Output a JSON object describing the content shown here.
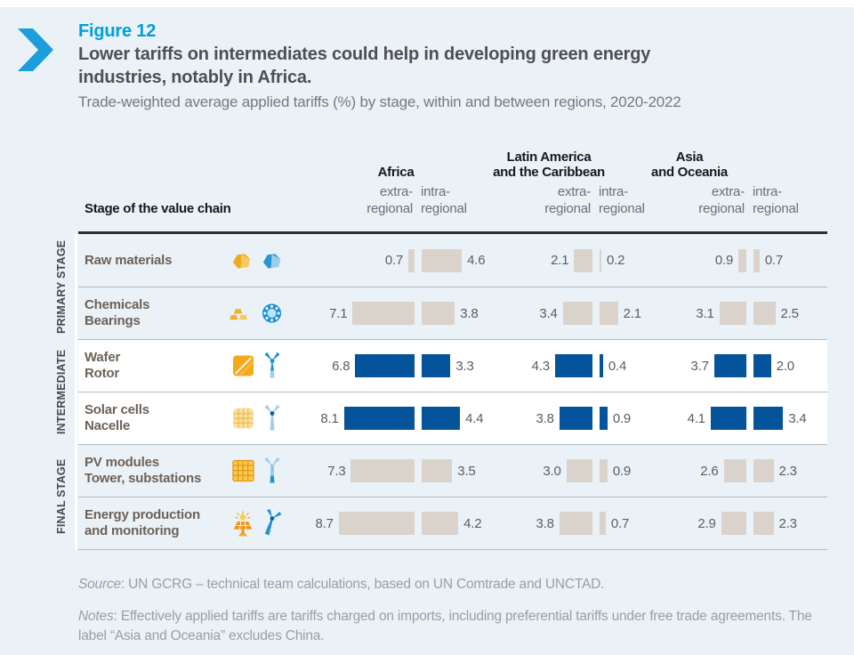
{
  "header": {
    "figure_label": "Figure 12",
    "title": "Lower tariffs on intermediates could help in developing green energy\nindustries, notably in Africa.",
    "subtitle": "Trade-weighted average applied tariffs (%) by stage, within and between regions, 2020-2022",
    "accent_color": "#009edb"
  },
  "table": {
    "stage_column_header": "Stage of the value chain",
    "regions": [
      {
        "id": "africa",
        "name": "Africa",
        "extra_label": "extra-\nregional",
        "intra_label": "intra-\nregional"
      },
      {
        "id": "lac",
        "name": "Latin America\nand the Caribbean",
        "extra_label": "extra-\nregional",
        "intra_label": "intra-\nregional"
      },
      {
        "id": "asia",
        "name": "Asia\nand Oceania",
        "extra_label": "extra-\nregional",
        "intra_label": "intra-\nregional"
      }
    ],
    "stage_groups": [
      {
        "label": "PRIMARY STAGE"
      },
      {
        "label": "INTERMEDIATE"
      },
      {
        "label": "FINAL STAGE"
      }
    ],
    "rows": [
      {
        "label": "Raw materials",
        "stage": "primary",
        "icons": [
          "mineral-nugget-yellow-icon",
          "mineral-nugget-blue-icon"
        ],
        "values": {
          "africa": {
            "extra": "0.7",
            "intra": "4.6"
          },
          "lac": {
            "extra": "2.1",
            "intra": "0.2"
          },
          "asia": {
            "extra": "0.9",
            "intra": "0.7"
          }
        }
      },
      {
        "label": "Chemicals\nBearings",
        "stage": "primary",
        "icons": [
          "gold-bars-icon",
          "bearing-icon"
        ],
        "values": {
          "africa": {
            "extra": "7.1",
            "intra": "3.8"
          },
          "lac": {
            "extra": "3.4",
            "intra": "2.1"
          },
          "asia": {
            "extra": "3.1",
            "intra": "2.5"
          }
        }
      },
      {
        "label": "Wafer\nRotor",
        "stage": "intermediate",
        "icons": [
          "wafer-icon",
          "turbine-rotor-icon"
        ],
        "values": {
          "africa": {
            "extra": "6.8",
            "intra": "3.3"
          },
          "lac": {
            "extra": "4.3",
            "intra": "0.4"
          },
          "asia": {
            "extra": "3.7",
            "intra": "2.0"
          }
        }
      },
      {
        "label": "Solar cells\nNacelle",
        "stage": "intermediate",
        "icons": [
          "solar-cell-icon",
          "turbine-nacelle-icon"
        ],
        "values": {
          "africa": {
            "extra": "8.1",
            "intra": "4.4"
          },
          "lac": {
            "extra": "3.8",
            "intra": "0.9"
          },
          "asia": {
            "extra": "4.1",
            "intra": "3.4"
          }
        }
      },
      {
        "label": "PV modules\nTower, substations",
        "stage": "final",
        "icons": [
          "pv-module-icon",
          "turbine-tower-icon"
        ],
        "values": {
          "africa": {
            "extra": "7.3",
            "intra": "3.5"
          },
          "lac": {
            "extra": "3.0",
            "intra": "0.9"
          },
          "asia": {
            "extra": "2.6",
            "intra": "2.3"
          }
        }
      },
      {
        "label": "Energy production\nand monitoring",
        "stage": "final",
        "icons": [
          "solar-panel-sun-icon",
          "turbine-spinning-icon"
        ],
        "values": {
          "africa": {
            "extra": "8.7",
            "intra": "4.2"
          },
          "lac": {
            "extra": "3.8",
            "intra": "0.7"
          },
          "asia": {
            "extra": "2.9",
            "intra": "2.3"
          }
        }
      }
    ],
    "bar_colors": {
      "primary_and_final": "#d9d3cc",
      "intermediate": "#05549b"
    }
  },
  "footer": {
    "source_label": "Source",
    "source_text": ": UN GCRG – technical team calculations, based on UN Comtrade and UNCTAD.",
    "notes_label": "Notes",
    "notes_text": ": Effectively applied tariffs are tariffs charged on imports, including preferential tariffs under free trade agreements. The label “Asia and Oceania” excludes China."
  },
  "chart_data": {
    "type": "bar",
    "title": "Figure 12 — Lower tariffs on intermediates could help in developing green energy industries, notably in Africa.",
    "subtitle": "Trade-weighted average applied tariffs (%) by stage, within and between regions, 2020-2022",
    "categories": [
      "Raw materials",
      "Chemicals, Bearings",
      "Wafer, Rotor",
      "Solar cells, Nacelle",
      "PV modules, Tower, substations",
      "Energy production and monitoring"
    ],
    "stage_of_category": [
      "Primary stage",
      "Primary stage",
      "Intermediate",
      "Intermediate",
      "Final stage",
      "Final stage"
    ],
    "series": [
      {
        "name": "Africa extra-regional",
        "values": [
          0.7,
          7.1,
          6.8,
          8.1,
          7.3,
          8.7
        ]
      },
      {
        "name": "Africa intra-regional",
        "values": [
          4.6,
          3.8,
          3.3,
          4.4,
          3.5,
          4.2
        ]
      },
      {
        "name": "Latin America and the Caribbean extra-regional",
        "values": [
          2.1,
          3.4,
          4.3,
          3.8,
          3.0,
          3.8
        ]
      },
      {
        "name": "Latin America and the Caribbean intra-regional",
        "values": [
          0.2,
          2.1,
          0.4,
          0.9,
          0.9,
          0.7
        ]
      },
      {
        "name": "Asia and Oceania extra-regional",
        "values": [
          0.9,
          3.1,
          3.7,
          4.1,
          2.6,
          2.9
        ]
      },
      {
        "name": "Asia and Oceania intra-regional",
        "values": [
          0.7,
          2.5,
          2.0,
          3.4,
          2.3,
          2.3
        ]
      }
    ],
    "xlim": [
      0,
      9
    ],
    "grid": false,
    "legend_position": "none",
    "value_labels": "shown beside each bar",
    "colors": {
      "primary_and_final_bars": "#d9d3cc",
      "intermediate_bars": "#05549b"
    }
  }
}
